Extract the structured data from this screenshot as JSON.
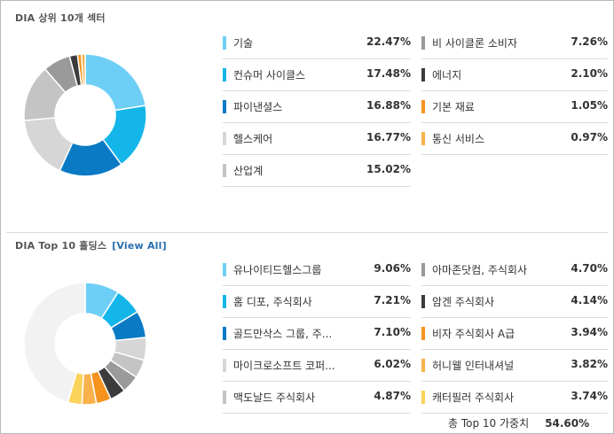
{
  "sectors": {
    "title": "DIA 상위 10개 섹터",
    "colors": {
      "c1": "#6ecff6",
      "c2": "#14b6ea",
      "c3": "#0a7ac4",
      "c4": "#d6d6d6",
      "c5": "#bcbcbc",
      "c6": "#9a9a9a",
      "c7": "#3c3c3c",
      "c8": "#f6931f",
      "c9": "#f9b24b"
    },
    "left": [
      {
        "label": "기술",
        "value": "22.47%",
        "color": "#6ecff6"
      },
      {
        "label": "컨슈머 사이클스",
        "value": "17.48%",
        "color": "#14b6ea"
      },
      {
        "label": "파이낸셜스",
        "value": "16.88%",
        "color": "#0a7ac4"
      },
      {
        "label": "헬스케어",
        "value": "16.77%",
        "color": "#d6d6d6"
      },
      {
        "label": "산업계",
        "value": "15.02%",
        "color": "#c4c4c4"
      }
    ],
    "right": [
      {
        "label": "비 사이클론 소비자",
        "value": "7.26%",
        "color": "#9a9a9a"
      },
      {
        "label": "에너지",
        "value": "2.10%",
        "color": "#3c3c3c"
      },
      {
        "label": "기본 재료",
        "value": "1.05%",
        "color": "#f6931f"
      },
      {
        "label": "통신 서비스",
        "value": "0.97%",
        "color": "#f9b24b"
      }
    ]
  },
  "holdings": {
    "title": "DIA Top 10 홀딩스",
    "view_all": "[View All]",
    "left": [
      {
        "label": "유나이티드헬스그룹",
        "value": "9.06%",
        "color": "#6ecff6"
      },
      {
        "label": "홈 디포, 주식회사",
        "value": "7.21%",
        "color": "#14b6ea"
      },
      {
        "label": "골드만삭스 그룹, 주...",
        "value": "7.10%",
        "color": "#0a7ac4"
      },
      {
        "label": "마이크로소프트 코퍼...",
        "value": "6.02%",
        "color": "#d6d6d6"
      },
      {
        "label": "맥도날드 주식회사",
        "value": "4.87%",
        "color": "#c4c4c4"
      }
    ],
    "right": [
      {
        "label": "아마존닷컴, 주식회사",
        "value": "4.70%",
        "color": "#9a9a9a"
      },
      {
        "label": "암겐 주식회사",
        "value": "4.14%",
        "color": "#3c3c3c"
      },
      {
        "label": "비자 주식회사 A급",
        "value": "3.94%",
        "color": "#f6931f"
      },
      {
        "label": "허니웰 인터내셔널",
        "value": "3.82%",
        "color": "#f9b24b"
      },
      {
        "label": "캐터필러 주식회사",
        "value": "3.74%",
        "color": "#fbd25a"
      }
    ],
    "total_label": "총 Top 10 가중치",
    "total_value": "54.60%",
    "rest_color": "#f2f2f2"
  }
}
